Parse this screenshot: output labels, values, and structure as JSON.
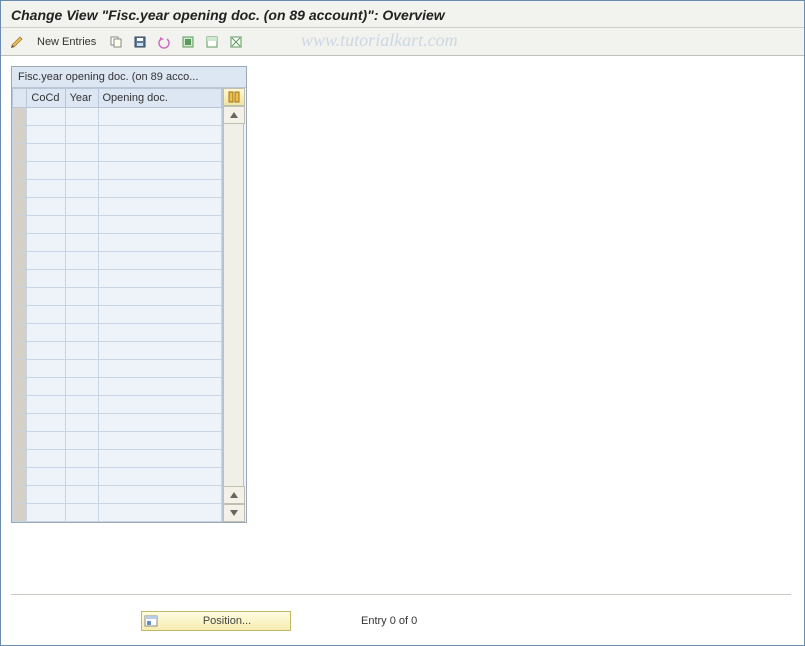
{
  "title": "Change View \"Fisc.year opening doc. (on 89 account)\": Overview",
  "toolbar": {
    "new_entries_label": "New Entries"
  },
  "watermark": "www.tutorialkart.com",
  "panel": {
    "title": "Fisc.year opening doc. (on 89 acco...",
    "columns": {
      "cocd": "CoCd",
      "year": "Year",
      "opening": "Opening doc."
    },
    "row_count": 23
  },
  "footer": {
    "position_label": "Position...",
    "entry_text": "Entry 0 of 0"
  },
  "colors": {
    "border": "#6a8cb0",
    "header_bg": "#dce7f3",
    "cell_bg": "#eef3f9",
    "toolbar_bg": "#f2f2ee",
    "watermark": "#cdd8e4",
    "position_bg": "#f6edb0"
  },
  "icons": {
    "toggle": "toggle-display-change-icon",
    "copy": "copy-icon",
    "save": "save-icon",
    "undo": "undo-icon",
    "select_all": "select-all-icon",
    "select_block": "select-block-icon",
    "deselect": "deselect-icon",
    "config": "configure-icon",
    "up": "scroll-up-icon",
    "down": "scroll-down-icon",
    "position": "position-icon"
  }
}
